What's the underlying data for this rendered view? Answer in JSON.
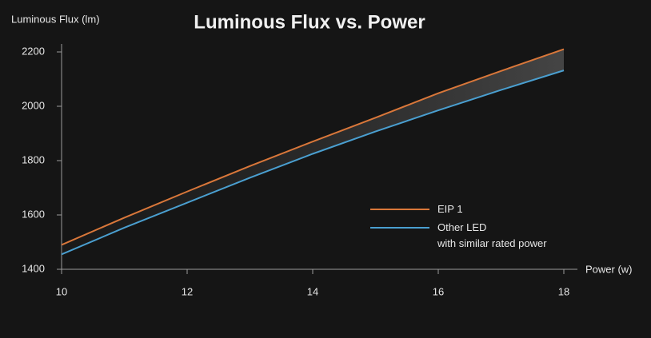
{
  "chart_data": {
    "type": "line",
    "title": "Luminous Flux vs. Power",
    "y_label": "Luminous Flux (lm)",
    "x_label": "Power (w)",
    "x": [
      10,
      11,
      12,
      13,
      14,
      15,
      16,
      17,
      18
    ],
    "series": [
      {
        "name": "EIP 1",
        "color": "#d9773a",
        "values": [
          1490,
          1590,
          1686,
          1780,
          1870,
          1958,
          2048,
          2130,
          2210
        ]
      },
      {
        "name": "Other LED\nwith similar rated power",
        "color": "#4a9fd0",
        "values": [
          1455,
          1553,
          1645,
          1737,
          1825,
          1907,
          1985,
          2060,
          2132
        ]
      }
    ],
    "xlim": [
      10,
      18
    ],
    "xticks": [
      10,
      12,
      14,
      16,
      18
    ],
    "ylim": [
      1400,
      2200
    ],
    "yticks": [
      1400,
      1600,
      1800,
      2000,
      2200
    ],
    "legend": "lower right"
  }
}
